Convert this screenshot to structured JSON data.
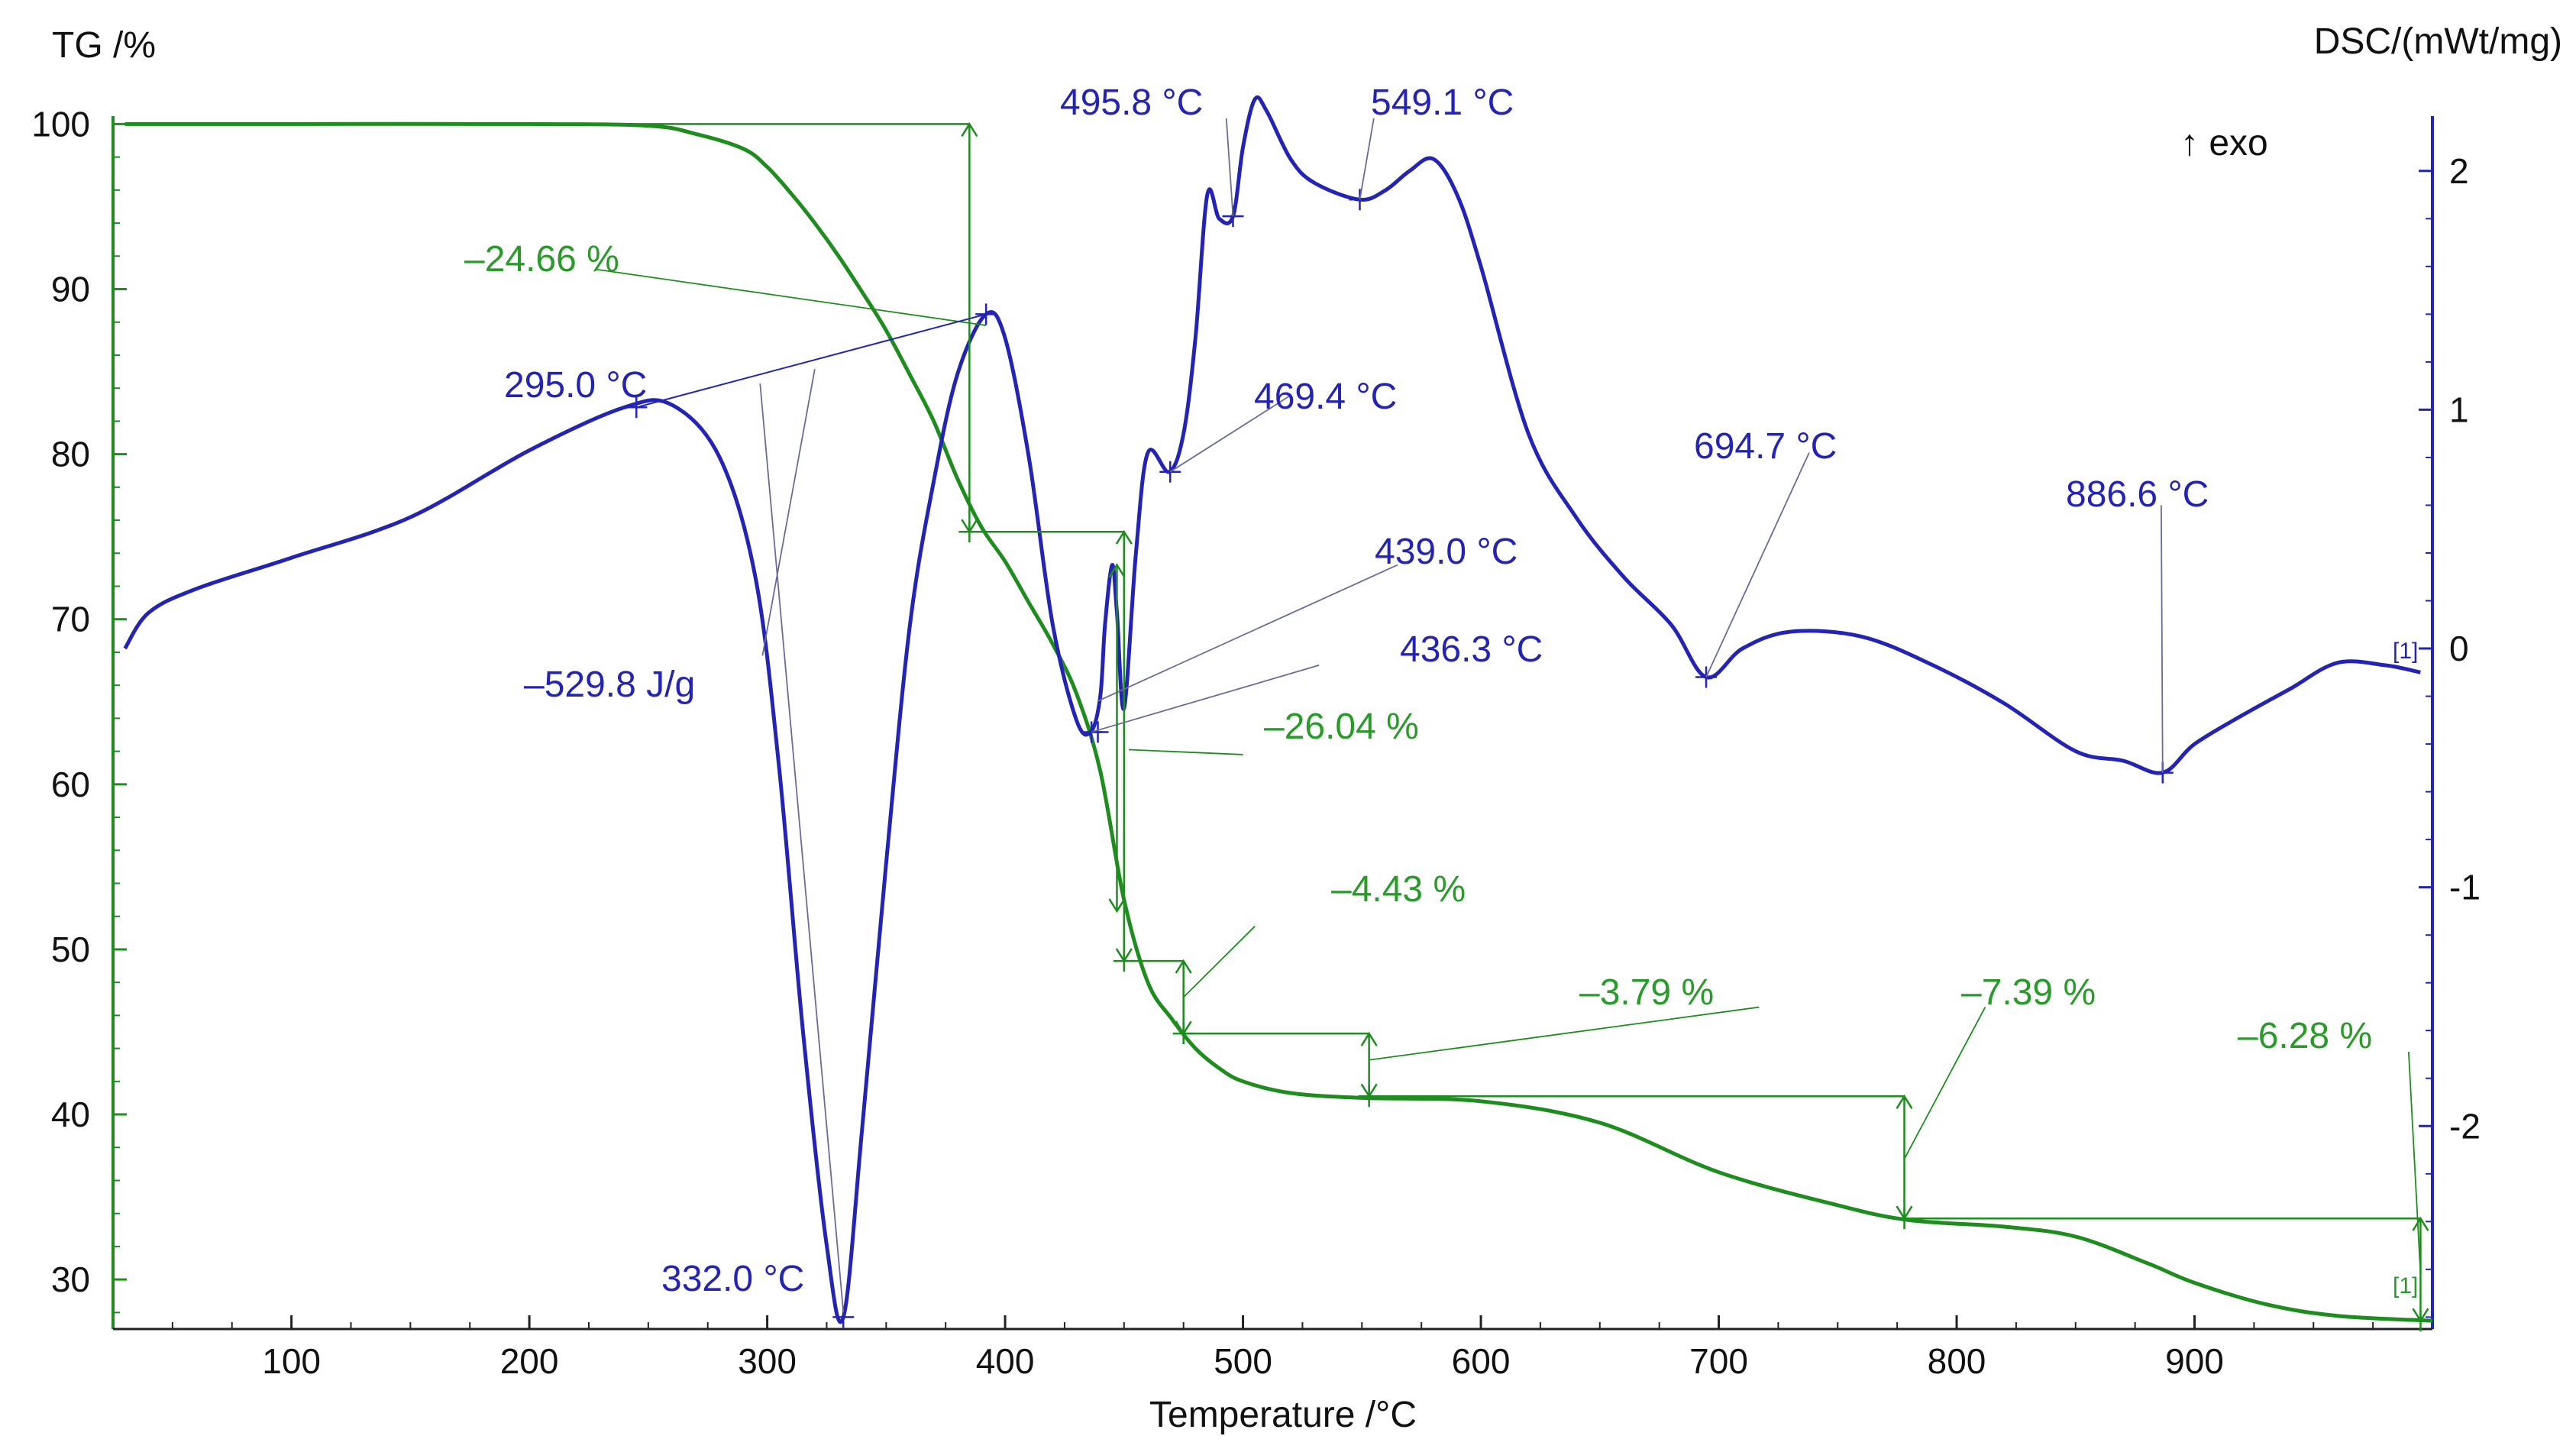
{
  "chart_data": {
    "type": "line",
    "xlabel": "Temperature /°C",
    "y_left_label": "TG /%",
    "y_right_label": "DSC/(mWt/mg)",
    "exo_label": "↑ exo",
    "xlim": [
      25,
      1000
    ],
    "y_left_lim": [
      27,
      101.5
    ],
    "y_right_lim": [
      -2.85,
      2.3
    ],
    "x_ticks": [
      100,
      200,
      300,
      400,
      500,
      600,
      700,
      800,
      900
    ],
    "y_left_ticks": [
      30,
      40,
      50,
      60,
      70,
      80,
      90,
      100
    ],
    "y_right_ticks": [
      -2,
      -1,
      0,
      1,
      2
    ],
    "colors": {
      "tg": "#1e8c1e",
      "tg_text": "#2a9a2a",
      "dsc": "#2424b4",
      "thin": "#6b6b9a"
    },
    "series": [
      {
        "name": "TG",
        "axis": "left",
        "x": [
          30,
          100,
          200,
          250,
          270,
          290,
          300,
          310,
          320,
          330,
          340,
          350,
          360,
          370,
          380,
          390,
          400,
          410,
          420,
          430,
          440,
          450,
          460,
          470,
          480,
          490,
          500,
          520,
          550,
          600,
          650,
          700,
          750,
          780,
          820,
          850,
          880,
          900,
          930,
          960,
          1000
        ],
        "y": [
          100,
          100,
          100,
          99.9,
          99.4,
          98.5,
          97.4,
          95.8,
          94,
          92,
          89.8,
          87.5,
          84.8,
          82,
          78.5,
          75.6,
          73.5,
          71,
          68.5,
          65.5,
          60.8,
          53,
          48,
          45.8,
          44,
          42.8,
          42,
          41.3,
          41,
          40.8,
          39.5,
          36.5,
          34.5,
          33.6,
          33.2,
          32.6,
          31,
          29.8,
          28.5,
          27.8,
          27.5
        ]
      },
      {
        "name": "DSC",
        "axis": "right",
        "x": [
          30,
          40,
          60,
          100,
          150,
          200,
          240,
          260,
          280,
          295,
          305,
          315,
          325,
          332,
          340,
          350,
          360,
          370,
          380,
          392,
          400,
          410,
          420,
          430,
          436,
          440,
          442,
          445,
          447,
          450,
          455,
          460,
          469,
          475,
          480,
          485,
          490,
          495.8,
          500,
          505,
          510,
          520,
          530,
          549,
          560,
          570,
          580,
          590,
          600,
          620,
          640,
          660,
          680,
          694.7,
          710,
          730,
          760,
          790,
          820,
          850,
          870,
          886.6,
          900,
          920,
          940,
          960,
          980,
          995
        ],
        "y": [
          0,
          0.15,
          0.25,
          0.38,
          0.55,
          0.83,
          1.01,
          1.02,
          0.8,
          0.3,
          -0.5,
          -1.6,
          -2.5,
          -2.8,
          -2.0,
          -0.9,
          0.1,
          0.7,
          1.15,
          1.4,
          1.3,
          0.8,
          0.1,
          -0.3,
          -0.35,
          -0.2,
          0.1,
          0.35,
          0.15,
          -0.25,
          0.4,
          0.82,
          0.74,
          0.9,
          1.3,
          1.9,
          1.8,
          1.81,
          2.1,
          2.3,
          2.25,
          2.05,
          1.95,
          1.88,
          1.92,
          2.0,
          2.05,
          1.9,
          1.6,
          0.9,
          0.55,
          0.3,
          0.1,
          -0.12,
          0.0,
          0.07,
          0.05,
          -0.07,
          -0.23,
          -0.43,
          -0.47,
          -0.52,
          -0.4,
          -0.28,
          -0.17,
          -0.06,
          -0.07,
          -0.1
        ]
      }
    ],
    "dsc_labels": [
      "295.0 °C",
      "332.0 °C",
      "–529.8 J/g",
      "436.3 °C",
      "439.0 °C",
      "469.4 °C",
      "495.8 °C",
      "549.1 °C",
      "694.7 °C",
      "886.6 °C"
    ],
    "tg_labels": [
      "–24.66 %",
      "–26.04 %",
      "–4.43 %",
      "–3.79 %",
      "–7.39 %",
      "–6.28 %"
    ],
    "end_marker_dsc": "[1]",
    "end_marker_tg": "[1]"
  }
}
